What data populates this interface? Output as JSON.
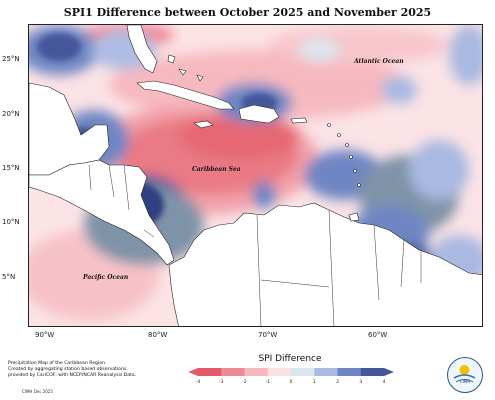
{
  "title": "SPI1 Difference between October 2025 and November 2025",
  "map": {
    "latitude_labels": [
      "25°N",
      "20°N",
      "15°N",
      "10°N",
      "5°N"
    ],
    "longitude_labels": [
      "90°W",
      "80°W",
      "70°W",
      "60°W"
    ],
    "ocean_labels": {
      "atlantic": "Atlantic Ocean",
      "caribbean": "Caribbean Sea",
      "pacific": "Pacific Ocean"
    },
    "palette": {
      "dark_blue": "#2f3f7f",
      "mid_blue": "#6e86c4",
      "light_blue": "#aebde4",
      "slate": "#7f93a8",
      "pale": "#f8dde2",
      "light_red": "#f4b4bc",
      "red": "#ee8a94",
      "deep_red": "#e8707a",
      "land": "#ffffff"
    }
  },
  "legend": {
    "title": "SPI Difference",
    "ticks": [
      "-4",
      "-3",
      "-2",
      "-1",
      "0",
      "1",
      "2",
      "3",
      "4"
    ],
    "colors": [
      "#e25a67",
      "#ee8a94",
      "#f6b9c0",
      "#fbe0e4",
      "#dbe6ef",
      "#a9b9e2",
      "#6e86c4",
      "#44569a"
    ]
  },
  "credit": {
    "line1": "Precipitation Map of the Caribbean Region.",
    "line2": "Created by aggregating station based observations,",
    "line3": "provided by CariCOF, with NCEP/NCAR Reanalysis Data."
  },
  "footer": {
    "date": "CIMH Dec 2025"
  },
  "logo": {
    "text": "CIMH"
  }
}
